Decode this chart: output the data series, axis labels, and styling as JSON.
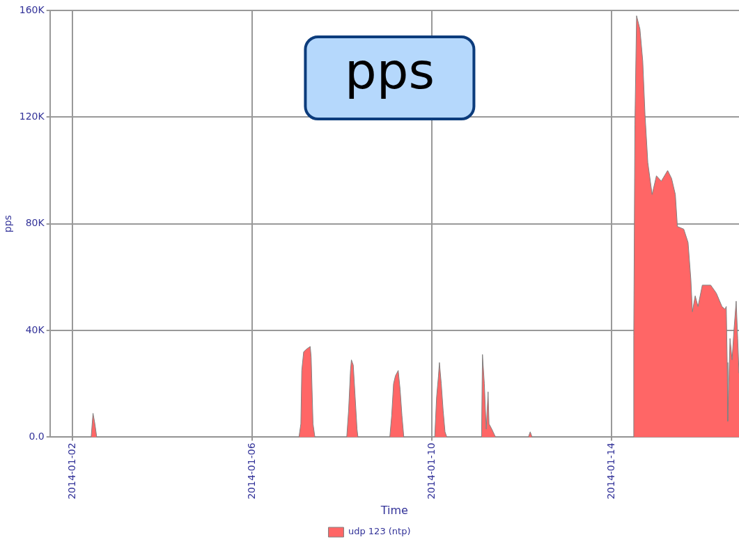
{
  "chart_data": {
    "type": "area",
    "xlabel": "Time",
    "ylabel": "pps",
    "annotations": [
      "pps"
    ],
    "xlim": [
      "2014-01-01T12:00",
      "2014-01-16T20:00"
    ],
    "xticks": [
      "2014-01-02",
      "2014-01-06",
      "2014-01-10",
      "2014-01-14"
    ],
    "ylim": [
      0,
      160000
    ],
    "yticks": [
      {
        "value": 0,
        "label": "0.0"
      },
      {
        "value": 40000,
        "label": "40K"
      },
      {
        "value": 80000,
        "label": "80K"
      },
      {
        "value": 120000,
        "label": "120K"
      },
      {
        "value": 160000,
        "label": "160K"
      }
    ],
    "grid": true,
    "legend": "bottom",
    "x": [
      "2014-01-01T12:00",
      "2014-01-02T10:00",
      "2014-01-02T11:00",
      "2014-01-02T12:00",
      "2014-01-02T13:00",
      "2014-01-07T01:00",
      "2014-01-07T02:00",
      "2014-01-07T02:30",
      "2014-01-07T03:30",
      "2014-01-07T05:00",
      "2014-01-07T07:00",
      "2014-01-07T07:30",
      "2014-01-07T08:30",
      "2014-01-07T09:30",
      "2014-01-08T02:30",
      "2014-01-08T03:30",
      "2014-01-08T04:30",
      "2014-01-08T05:00",
      "2014-01-08T06:00",
      "2014-01-08T07:00",
      "2014-01-08T08:00",
      "2014-01-08T08:30",
      "2014-01-09T01:30",
      "2014-01-09T02:30",
      "2014-01-09T03:30",
      "2014-01-09T04:30",
      "2014-01-09T06:00",
      "2014-01-09T07:00",
      "2014-01-09T08:00",
      "2014-01-09T09:00",
      "2014-01-10T01:30",
      "2014-01-10T02:30",
      "2014-01-10T03:30",
      "2014-01-10T04:00",
      "2014-01-10T05:00",
      "2014-01-10T06:00",
      "2014-01-10T07:00",
      "2014-01-10T08:00",
      "2014-01-11T02:30",
      "2014-01-11T03:00",
      "2014-01-11T04:00",
      "2014-01-11T05:00",
      "2014-01-11T05:30",
      "2014-01-11T06:00",
      "2014-01-11T06:30",
      "2014-01-11T08:00",
      "2014-01-11T10:00",
      "2014-01-12T03:30",
      "2014-01-12T04:30",
      "2014-01-12T05:30",
      "2014-01-14T11:36",
      "2014-01-14T11:48",
      "2014-01-14T12:24",
      "2014-01-14T13:18",
      "2014-01-14T15:06",
      "2014-01-14T16:36",
      "2014-01-14T17:48",
      "2014-01-14T19:18",
      "2014-01-14T21:36",
      "2014-01-14T23:54",
      "2014-01-15T02:30",
      "2014-01-15T05:54",
      "2014-01-15T08:00",
      "2014-01-15T10:00",
      "2014-01-15T11:06",
      "2014-01-15T14:30",
      "2014-01-15T16:48",
      "2014-01-15T18:18",
      "2014-01-15T19:06",
      "2014-01-15T20:36",
      "2014-01-15T22:06",
      "2014-01-16T00:24",
      "2014-01-16T04:54",
      "2014-01-16T07:54",
      "2014-01-16T10:54",
      "2014-01-16T12:30",
      "2014-01-16T13:12",
      "2014-01-16T13:42",
      "2014-01-16T14:00",
      "2014-01-16T15:12",
      "2014-01-16T16:18",
      "2014-01-16T17:18",
      "2014-01-16T18:30",
      "2014-01-16T19:18",
      "2014-01-16T20:00"
    ],
    "series": [
      {
        "name": "udp 123 (ntp)",
        "color": "#ff6666",
        "values": [
          0,
          0,
          9000,
          5000,
          0,
          0,
          5000,
          25000,
          32000,
          33000,
          34000,
          30000,
          5000,
          0,
          0,
          10000,
          25000,
          29000,
          27000,
          15000,
          3000,
          0,
          0,
          8000,
          20000,
          23000,
          25000,
          18000,
          8000,
          0,
          0,
          15000,
          23000,
          28000,
          20000,
          10000,
          2000,
          0,
          0,
          31000,
          20000,
          3000,
          10000,
          17000,
          5000,
          3000,
          0,
          0,
          2000,
          0,
          0,
          38000,
          117000,
          158000,
          153000,
          141000,
          121000,
          103000,
          91000,
          98000,
          96000,
          100000,
          97000,
          91000,
          79000,
          78000,
          73000,
          59000,
          47000,
          53000,
          49000,
          57000,
          57000,
          54000,
          49000,
          48000,
          49000,
          28000,
          6000,
          37000,
          29000,
          40000,
          51000,
          37000,
          24000
        ]
      }
    ]
  }
}
